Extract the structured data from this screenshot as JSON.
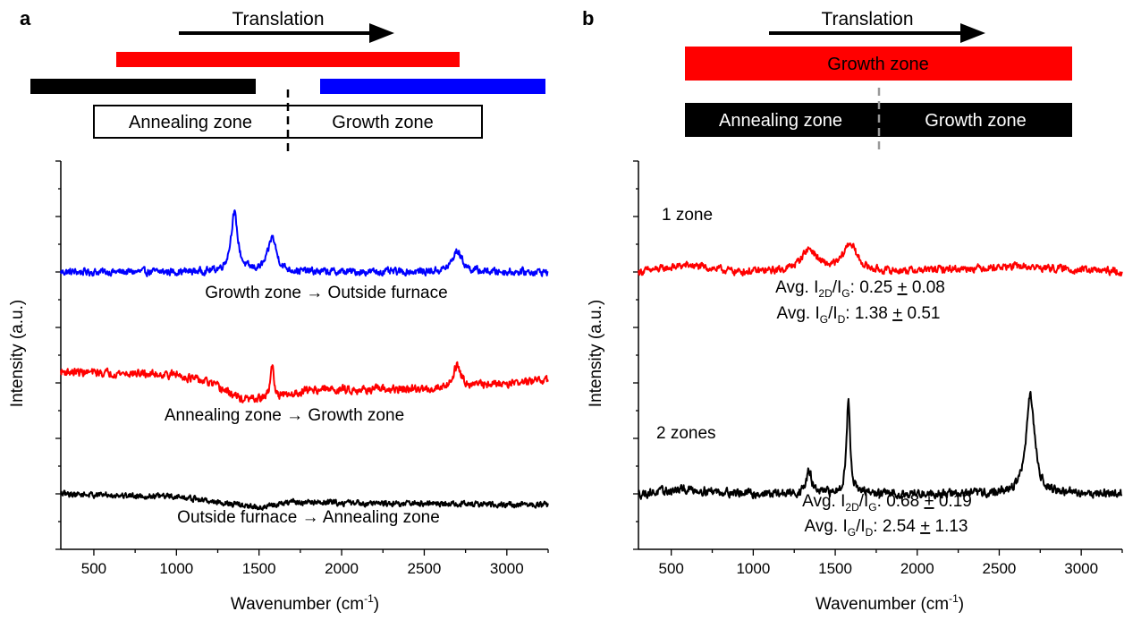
{
  "panels": {
    "a": {
      "letter": "a",
      "translation_label": "Translation",
      "zone_box": {
        "left_label": "Annealing zone",
        "right_label": "Growth zone"
      },
      "bar_colors": {
        "red": "#ff0000",
        "black": "#000000",
        "blue": "#0000ff"
      }
    },
    "b": {
      "letter": "b",
      "translation_label": "Translation",
      "growth_bar_label": "Growth zone",
      "zone_box": {
        "left_label": "Annealing zone",
        "right_label": "Growth zone"
      },
      "bar_colors": {
        "red": "#ff0000",
        "black": "#000000"
      }
    }
  },
  "chart_data": [
    {
      "type": "line",
      "panel": "a",
      "xlabel": "Wavenumber (cm",
      "xlabel_sup": "-1",
      "xlabel_end": ")",
      "ylabel": "Intensity (a.u.)",
      "xlim": [
        300,
        3250
      ],
      "ylim": [
        0,
        7
      ],
      "x_ticks": [
        "500",
        "1000",
        "1500",
        "2000",
        "2500",
        "3000"
      ],
      "y_ticks_labeled": false,
      "series": [
        {
          "name": "Growth zone → Outside furnace",
          "color": "#0000ff",
          "baseline": 5,
          "noise": 0.1,
          "peaks": [
            [
              1350,
              1.05,
              25
            ],
            [
              1580,
              0.62,
              30
            ],
            [
              2700,
              0.38,
              35
            ]
          ]
        },
        {
          "name": "Annealing zone → Growth zone",
          "color": "#ff0000",
          "baseline": 3,
          "noise": 0.11,
          "peaks": [
            [
              1580,
              0.6,
              14
            ],
            [
              2700,
              0.4,
              28
            ]
          ],
          "curve": [
            [
              300,
              0.2
            ],
            [
              1000,
              0.15
            ],
            [
              1200,
              0.0
            ],
            [
              1400,
              -0.3
            ],
            [
              1600,
              -0.3
            ],
            [
              1800,
              -0.12
            ],
            [
              2500,
              -0.12
            ],
            [
              3250,
              0.05
            ]
          ]
        },
        {
          "name": "Outside furnace → Annealing zone",
          "color": "#000000",
          "baseline": 1,
          "noise": 0.08,
          "peaks": [],
          "curve": [
            [
              300,
              0.0
            ],
            [
              1000,
              -0.05
            ],
            [
              1500,
              -0.25
            ],
            [
              1700,
              -0.15
            ],
            [
              2500,
              -0.18
            ],
            [
              3250,
              -0.2
            ]
          ]
        }
      ]
    },
    {
      "type": "line",
      "panel": "b",
      "xlabel": "Wavenumber (cm",
      "xlabel_sup": "-1",
      "xlabel_end": ")",
      "ylabel": "Intensity (a.u.)",
      "xlim": [
        300,
        3250
      ],
      "ylim": [
        0,
        7
      ],
      "x_ticks": [
        "500",
        "1000",
        "1500",
        "2000",
        "2500",
        "3000"
      ],
      "y_ticks_labeled": false,
      "series": [
        {
          "name": "1 zone",
          "color": "#ff0000",
          "baseline": 5,
          "noise": 0.1,
          "peaks": [
            [
              1340,
              0.4,
              60
            ],
            [
              1590,
              0.5,
              50
            ]
          ],
          "curve": [
            [
              300,
              0.0
            ],
            [
              600,
              0.12
            ],
            [
              900,
              0.0
            ],
            [
              1800,
              0.0
            ],
            [
              2600,
              0.1
            ],
            [
              3250,
              0.0
            ]
          ],
          "annotations": [
            {
              "prefix": "Avg. I",
              "sub1": "2D",
              "mid": "/I",
              "sub2": "G",
              "value": ": 0.25 ",
              "pm": "+",
              "err": " 0.08"
            },
            {
              "prefix": "Avg. I",
              "sub1": "G",
              "mid": "/I",
              "sub2": "D",
              "value": ": 1.38 ",
              "pm": "+",
              "err": " 0.51"
            }
          ]
        },
        {
          "name": "2 zones",
          "color": "#000000",
          "baseline": 1,
          "noise": 0.12,
          "peaks": [
            [
              1340,
              0.4,
              20
            ],
            [
              1580,
              1.65,
              14
            ],
            [
              2690,
              1.75,
              32
            ]
          ],
          "curve": [
            [
              300,
              0.0
            ],
            [
              600,
              0.08
            ],
            [
              1000,
              0.0
            ],
            [
              3250,
              0.0
            ]
          ],
          "annotations": [
            {
              "prefix": "Avg. I",
              "sub1": "2D",
              "mid": "/I",
              "sub2": "G",
              "value": ": 0.68 ",
              "pm": "+",
              "err": " 0.19"
            },
            {
              "prefix": "Avg. I",
              "sub1": "G",
              "mid": "/I",
              "sub2": "D",
              "value": ": 2.54 ",
              "pm": "+",
              "err": " 1.13"
            }
          ]
        }
      ]
    }
  ]
}
